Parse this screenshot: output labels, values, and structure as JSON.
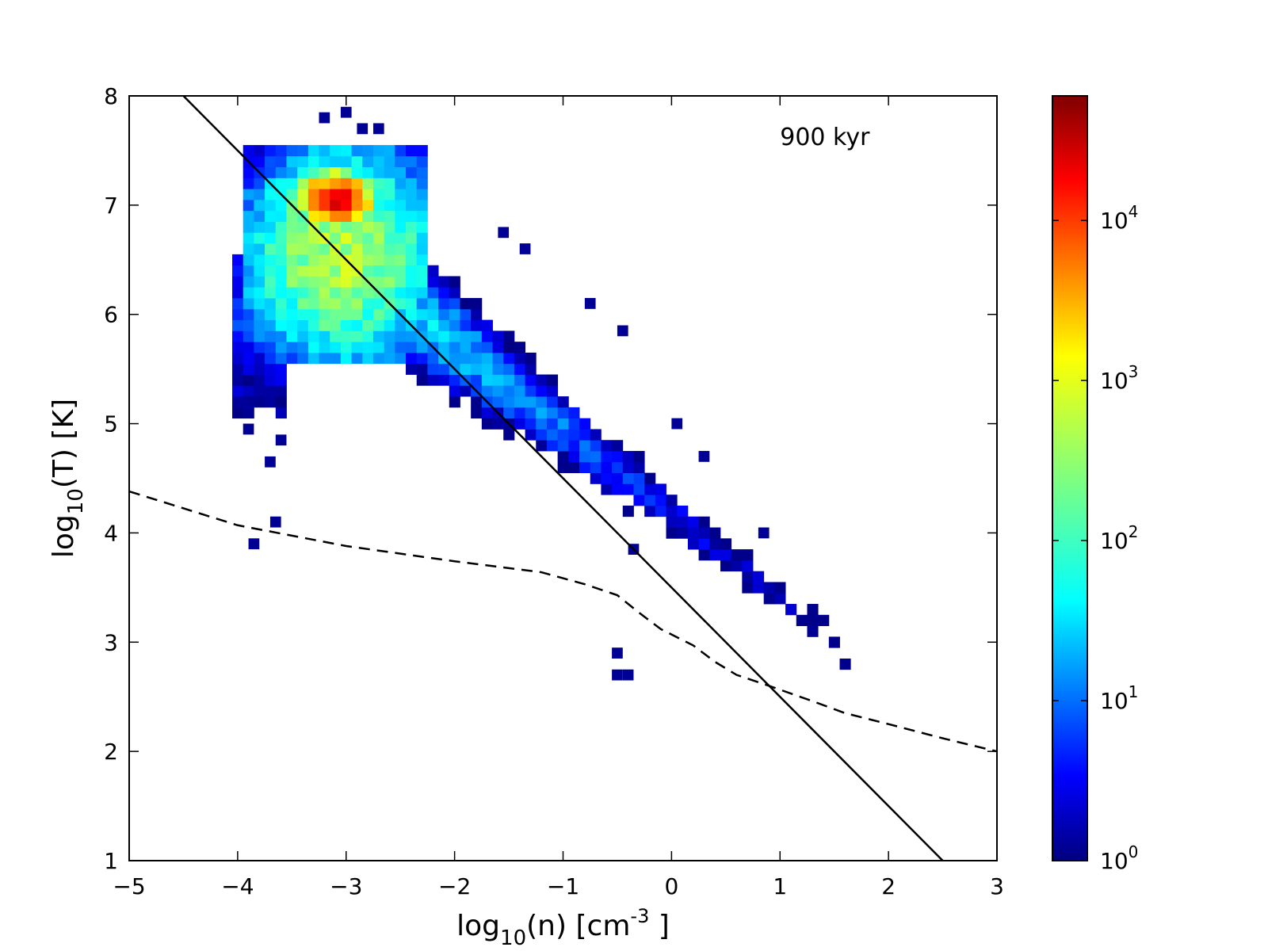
{
  "chart_data": {
    "type": "heatmap",
    "title": "",
    "annotation": "900 kyr",
    "xlabel": {
      "main": "log",
      "sub": "10",
      "rest": "(n) [cm",
      "sup": "-3",
      "tail": " ]"
    },
    "ylabel": {
      "main": "log",
      "sub": "10",
      "rest": "(T) [K]"
    },
    "xlim": [
      -5,
      3
    ],
    "ylim": [
      1,
      8
    ],
    "xticks": [
      "−5",
      "−4",
      "−3",
      "−2",
      "−1",
      "0",
      "1",
      "2",
      "3"
    ],
    "xtick_values": [
      -5,
      -4,
      -3,
      -2,
      -1,
      0,
      1,
      2,
      3
    ],
    "yticks": [
      "1",
      "2",
      "3",
      "4",
      "5",
      "6",
      "7",
      "8"
    ],
    "ytick_values": [
      1,
      2,
      3,
      4,
      5,
      6,
      7,
      8
    ],
    "colorbar": {
      "scale": "log",
      "range": [
        1,
        60000
      ],
      "colormap": "jet",
      "ticks": [
        {
          "value": 1,
          "base": "10",
          "exp": "0"
        },
        {
          "value": 10,
          "base": "10",
          "exp": "1"
        },
        {
          "value": 100,
          "base": "10",
          "exp": "2"
        },
        {
          "value": 1000,
          "base": "10",
          "exp": "3"
        },
        {
          "value": 10000,
          "base": "10",
          "exp": "4"
        }
      ]
    },
    "bin_size": {
      "dx": 0.1,
      "dy": 0.1
    },
    "density_model": {
      "description_of_regions": "main hot low-density cloud and cooling tail",
      "regions": [
        {
          "x_range": [
            -3.9,
            -2.3
          ],
          "y_range": [
            5.5,
            7.5
          ],
          "peak_log_count": 3.0
        },
        {
          "x_range": [
            -3.4,
            -2.7
          ],
          "y_range": [
            6.8,
            7.4
          ],
          "peak_log_count": 4.2
        },
        {
          "x_range": [
            -2.3,
            1.0
          ],
          "y_range": [
            3.6,
            6.0
          ],
          "peak_log_count": 1.6
        }
      ]
    },
    "series": [
      {
        "style": "solid",
        "x": [
          -4.5,
          2.5
        ],
        "y": [
          8.0,
          1.0
        ]
      },
      {
        "style": "dashed",
        "x": [
          -5,
          -4,
          -3,
          -2,
          -1.2,
          -0.8,
          -0.5,
          -0.3,
          -0.1,
          0.2,
          0.4,
          0.6,
          0.9,
          1.3,
          1.6,
          2.0,
          2.5,
          3.0
        ],
        "y": [
          4.38,
          4.07,
          3.88,
          3.74,
          3.64,
          3.53,
          3.43,
          3.27,
          3.12,
          2.97,
          2.82,
          2.7,
          2.6,
          2.46,
          2.35,
          2.25,
          2.12,
          2.0
        ]
      }
    ],
    "outliers": [
      [
        -3.9,
        3.85
      ],
      [
        -3.7,
        4.05
      ],
      [
        -0.55,
        2.85
      ],
      [
        -0.55,
        2.65
      ],
      [
        -0.45,
        2.65
      ],
      [
        -3.75,
        4.6
      ],
      [
        -3.65,
        4.8
      ],
      [
        -3.95,
        4.9
      ],
      [
        -3.95,
        5.15
      ],
      [
        -3.05,
        7.8
      ],
      [
        -3.25,
        7.75
      ],
      [
        -2.75,
        7.65
      ],
      [
        -2.9,
        7.65
      ],
      [
        -1.6,
        6.7
      ],
      [
        -1.4,
        6.55
      ],
      [
        -0.8,
        6.05
      ],
      [
        -0.5,
        5.8
      ],
      [
        0.0,
        4.95
      ],
      [
        0.25,
        4.65
      ],
      [
        0.8,
        3.95
      ],
      [
        -0.4,
        3.8
      ]
    ],
    "grid": false
  }
}
